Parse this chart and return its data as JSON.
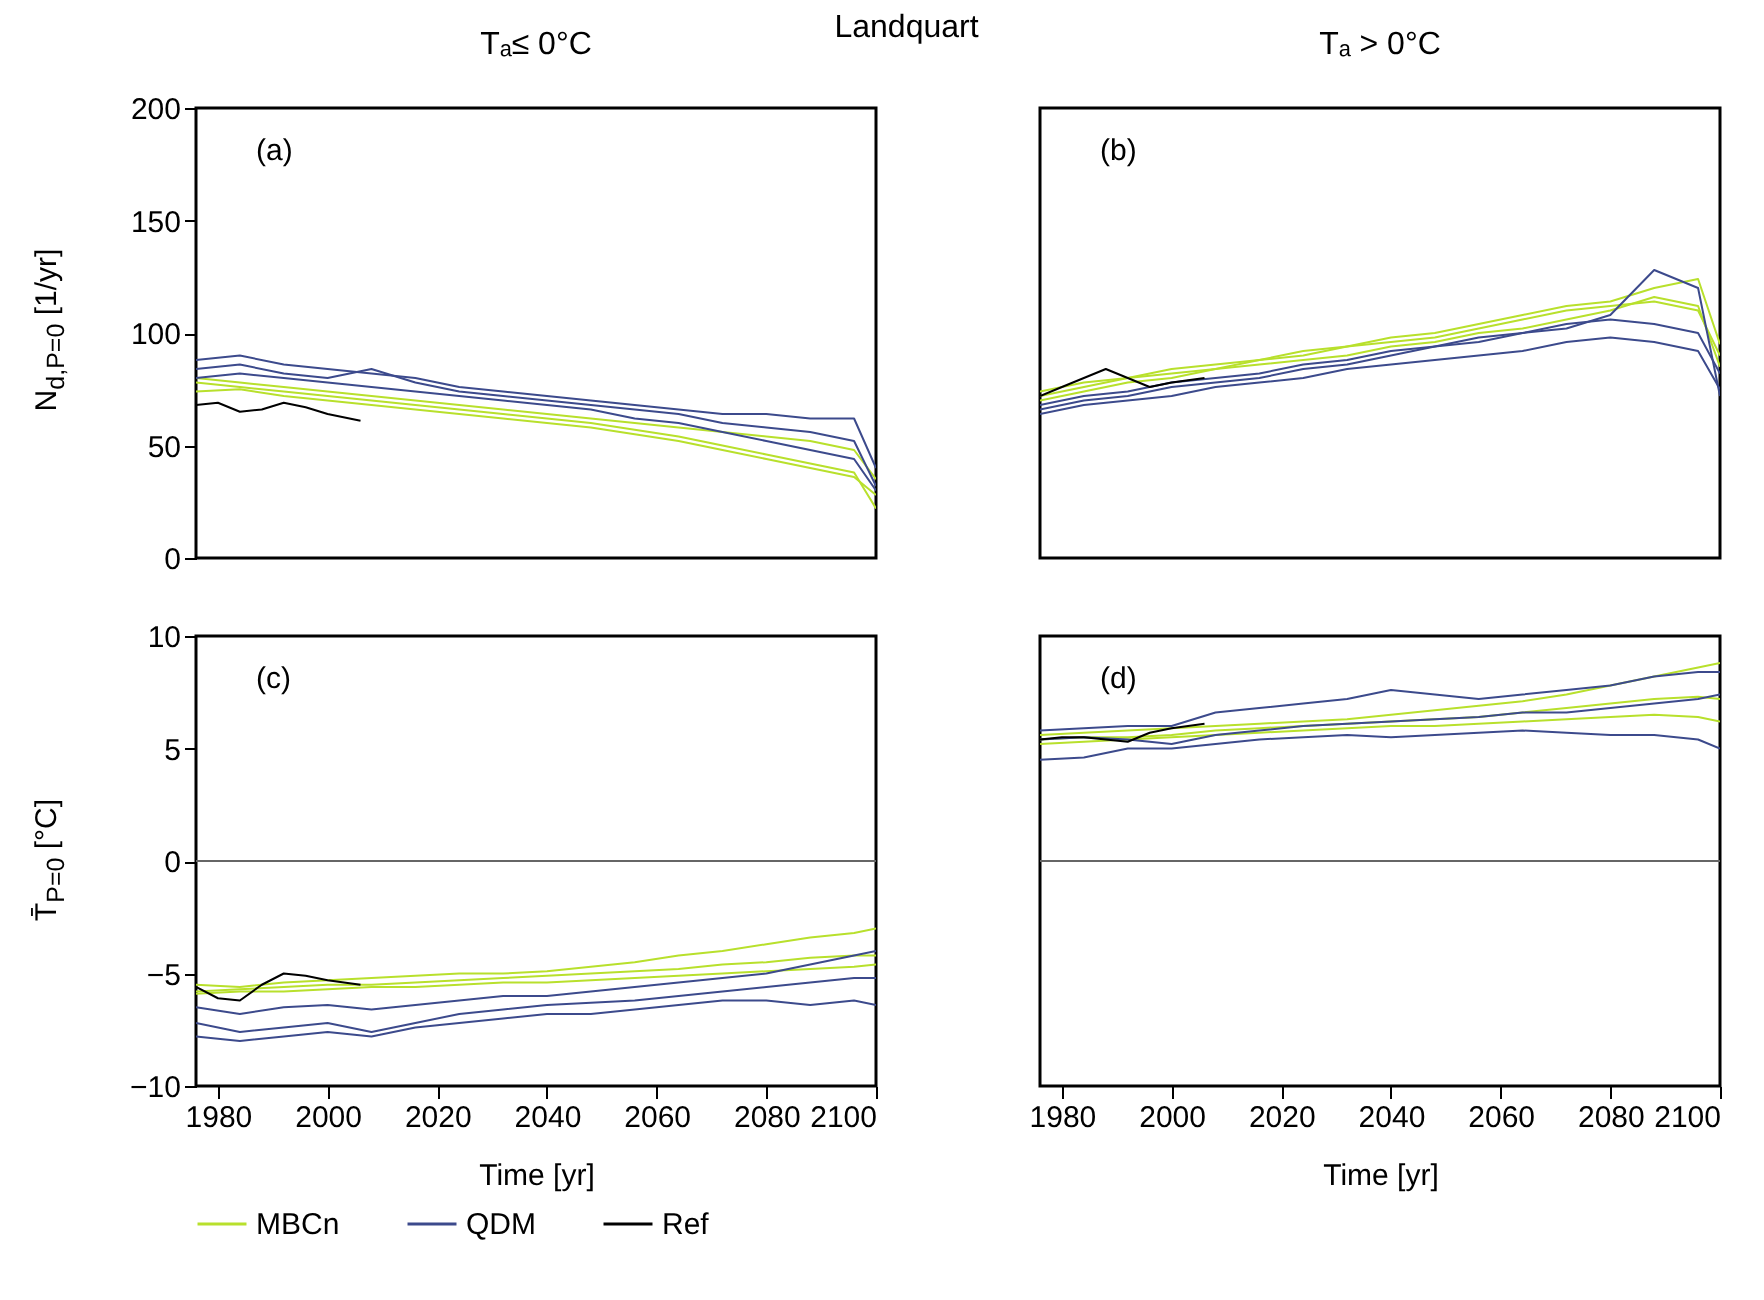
{
  "chart_data": [
    {
      "type": "line",
      "title": "Landquart",
      "subtitle": "Tₐ≤  0°C",
      "ylabel": "N$_{d,P=0}$ [1/yr]",
      "annotations": [
        "(a)"
      ],
      "legend": "bottom",
      "tick_labels": "y",
      "xlim": [
        1976,
        2100
      ],
      "xticks": [
        1980,
        2000,
        2020,
        2040,
        2060,
        2080,
        2100
      ],
      "ylim": [
        0,
        200
      ],
      "yticks": [
        0,
        50,
        100,
        150,
        200
      ],
      "x": [
        1976,
        1984,
        1992,
        2000,
        2008,
        2016,
        2024,
        2032,
        2040,
        2048,
        2056,
        2064,
        2072,
        2080,
        2088,
        2096,
        2100
      ],
      "series": [
        {
          "name": "MBCn",
          "color": "#b8e02c",
          "values": [
            78,
            76,
            74,
            72,
            70,
            68,
            66,
            64,
            62,
            60,
            57,
            54,
            50,
            46,
            42,
            38,
            22
          ]
        },
        {
          "color": "#b8e02c",
          "values": [
            74,
            75,
            72,
            70,
            68,
            66,
            64,
            62,
            60,
            58,
            55,
            52,
            48,
            44,
            40,
            36,
            28
          ]
        },
        {
          "color": "#b8e02c",
          "values": [
            80,
            78,
            76,
            74,
            72,
            70,
            68,
            66,
            64,
            62,
            60,
            58,
            56,
            54,
            52,
            48,
            35
          ]
        },
        {
          "name": "QDM",
          "color": "#3c4a8c",
          "values": [
            88,
            90,
            86,
            84,
            82,
            80,
            76,
            74,
            72,
            70,
            68,
            66,
            64,
            64,
            62,
            62,
            40
          ]
        },
        {
          "color": "#3c4a8c",
          "values": [
            80,
            82,
            80,
            78,
            76,
            74,
            72,
            70,
            68,
            66,
            62,
            60,
            56,
            52,
            48,
            44,
            30
          ]
        },
        {
          "color": "#3c4a8c",
          "values": [
            84,
            86,
            82,
            80,
            84,
            78,
            74,
            72,
            70,
            68,
            66,
            64,
            60,
            58,
            56,
            52,
            32
          ]
        },
        {
          "name": "Ref",
          "color": "#000000",
          "x": [
            1976,
            1980,
            1984,
            1988,
            1992,
            1996,
            2000,
            2006
          ],
          "values": [
            68,
            69,
            65,
            66,
            69,
            67,
            64,
            61
          ]
        }
      ]
    },
    {
      "type": "line",
      "subtitle": "Tₐ > 0°C",
      "annotations": [
        "(b)"
      ],
      "tick_labels": false,
      "xlim": [
        1976,
        2100
      ],
      "xticks": [
        1980,
        2000,
        2020,
        2040,
        2060,
        2080,
        2100
      ],
      "ylim": [
        0,
        200
      ],
      "yticks": [
        0,
        50,
        100,
        150,
        200
      ],
      "x": [
        1976,
        1984,
        1992,
        2000,
        2008,
        2016,
        2024,
        2032,
        2040,
        2048,
        2056,
        2064,
        2072,
        2080,
        2088,
        2096,
        2100
      ],
      "series": [
        {
          "name": "MBCn",
          "color": "#b8e02c",
          "values": [
            72,
            76,
            80,
            84,
            86,
            88,
            90,
            94,
            98,
            100,
            104,
            108,
            112,
            114,
            120,
            124,
            95
          ]
        },
        {
          "color": "#b8e02c",
          "values": [
            70,
            74,
            78,
            80,
            84,
            86,
            88,
            90,
            94,
            96,
            100,
            102,
            106,
            110,
            116,
            112,
            85
          ]
        },
        {
          "color": "#b8e02c",
          "values": [
            74,
            78,
            80,
            82,
            84,
            88,
            92,
            94,
            96,
            98,
            102,
            106,
            110,
            112,
            114,
            110,
            90
          ]
        },
        {
          "name": "QDM",
          "color": "#3c4a8c",
          "values": [
            66,
            70,
            72,
            76,
            78,
            80,
            84,
            86,
            90,
            94,
            98,
            100,
            102,
            108,
            128,
            120,
            72
          ]
        },
        {
          "color": "#3c4a8c",
          "values": [
            64,
            68,
            70,
            72,
            76,
            78,
            80,
            84,
            86,
            88,
            90,
            92,
            96,
            98,
            96,
            92,
            75
          ]
        },
        {
          "color": "#3c4a8c",
          "values": [
            68,
            72,
            74,
            78,
            80,
            82,
            86,
            88,
            92,
            94,
            96,
            100,
            104,
            106,
            104,
            100,
            82
          ]
        },
        {
          "name": "Ref",
          "color": "#000000",
          "x": [
            1976,
            1980,
            1984,
            1988,
            1992,
            1996,
            2000,
            2006
          ],
          "values": [
            72,
            76,
            80,
            84,
            80,
            76,
            78,
            80
          ]
        }
      ]
    },
    {
      "type": "line",
      "xlabel": "Time [yr]",
      "ylabel": "T̄$_{P=0}$ [°C]",
      "annotations": [
        "(c)"
      ],
      "xlim": [
        1976,
        2100
      ],
      "xticks": [
        1980,
        2000,
        2020,
        2040,
        2060,
        2080,
        2100
      ],
      "ylim": [
        -10,
        10
      ],
      "yticks": [
        -10,
        -5,
        0,
        5,
        10
      ],
      "ref_lines": [
        {
          "axis": "y",
          "value": 0,
          "color": "#666666"
        }
      ],
      "x": [
        1976,
        1984,
        1992,
        2000,
        2008,
        2016,
        2024,
        2032,
        2040,
        2048,
        2056,
        2064,
        2072,
        2080,
        2088,
        2096,
        2100
      ],
      "series": [
        {
          "name": "MBCn",
          "color": "#b8e02c",
          "values": [
            -5.5,
            -5.6,
            -5.4,
            -5.3,
            -5.2,
            -5.1,
            -5,
            -5,
            -4.9,
            -4.7,
            -4.5,
            -4.2,
            -4,
            -3.7,
            -3.4,
            -3.2,
            -3
          ]
        },
        {
          "color": "#b8e02c",
          "values": [
            -5.8,
            -5.7,
            -5.6,
            -5.5,
            -5.5,
            -5.4,
            -5.3,
            -5.2,
            -5.1,
            -5,
            -4.9,
            -4.8,
            -4.6,
            -4.5,
            -4.3,
            -4.2,
            -4.2
          ]
        },
        {
          "color": "#b8e02c",
          "values": [
            -5.9,
            -5.8,
            -5.8,
            -5.7,
            -5.6,
            -5.6,
            -5.5,
            -5.4,
            -5.4,
            -5.3,
            -5.2,
            -5.1,
            -5,
            -4.9,
            -4.8,
            -4.7,
            -4.6
          ]
        },
        {
          "name": "QDM",
          "color": "#3c4a8c",
          "values": [
            -6.5,
            -6.8,
            -6.5,
            -6.4,
            -6.6,
            -6.4,
            -6.2,
            -6,
            -6,
            -5.8,
            -5.6,
            -5.4,
            -5.2,
            -5,
            -4.6,
            -4.2,
            -4
          ]
        },
        {
          "color": "#3c4a8c",
          "values": [
            -7.2,
            -7.6,
            -7.4,
            -7.2,
            -7.6,
            -7.2,
            -6.8,
            -6.6,
            -6.4,
            -6.3,
            -6.2,
            -6,
            -5.8,
            -5.6,
            -5.4,
            -5.2,
            -5.2
          ]
        },
        {
          "color": "#3c4a8c",
          "values": [
            -7.8,
            -8,
            -7.8,
            -7.6,
            -7.8,
            -7.4,
            -7.2,
            -7,
            -6.8,
            -6.8,
            -6.6,
            -6.4,
            -6.2,
            -6.2,
            -6.4,
            -6.2,
            -6.4
          ]
        },
        {
          "name": "Ref",
          "color": "#000000",
          "x": [
            1976,
            1980,
            1984,
            1988,
            1992,
            1996,
            2000,
            2006
          ],
          "values": [
            -5.6,
            -6.1,
            -6.2,
            -5.5,
            -5.0,
            -5.1,
            -5.3,
            -5.5
          ]
        }
      ]
    },
    {
      "type": "line",
      "xlabel": "Time [yr]",
      "annotations": [
        "(d)"
      ],
      "tick_labels": "x",
      "xlim": [
        1976,
        2100
      ],
      "xticks": [
        1980,
        2000,
        2020,
        2040,
        2060,
        2080,
        2100
      ],
      "ylim": [
        -10,
        10
      ],
      "yticks": [
        -10,
        -5,
        0,
        5,
        10
      ],
      "ref_lines": [
        {
          "axis": "y",
          "value": 0,
          "color": "#666666"
        }
      ],
      "x": [
        1976,
        1984,
        1992,
        2000,
        2008,
        2016,
        2024,
        2032,
        2040,
        2048,
        2056,
        2064,
        2072,
        2080,
        2088,
        2096,
        2100
      ],
      "series": [
        {
          "name": "MBCn",
          "color": "#b8e02c",
          "values": [
            5.6,
            5.7,
            5.8,
            5.9,
            6,
            6.1,
            6.2,
            6.3,
            6.5,
            6.7,
            6.9,
            7.1,
            7.4,
            7.8,
            8.2,
            8.6,
            8.8
          ]
        },
        {
          "color": "#b8e02c",
          "values": [
            5.4,
            5.5,
            5.5,
            5.6,
            5.8,
            5.9,
            6,
            6.1,
            6.2,
            6.3,
            6.4,
            6.6,
            6.8,
            7,
            7.2,
            7.3,
            7.2
          ]
        },
        {
          "color": "#b8e02c",
          "values": [
            5.2,
            5.3,
            5.4,
            5.5,
            5.6,
            5.7,
            5.8,
            5.9,
            6,
            6,
            6.1,
            6.2,
            6.3,
            6.4,
            6.5,
            6.4,
            6.2
          ]
        },
        {
          "name": "QDM",
          "color": "#3c4a8c",
          "values": [
            5.8,
            5.9,
            6,
            6,
            6.6,
            6.8,
            7,
            7.2,
            7.6,
            7.4,
            7.2,
            7.4,
            7.6,
            7.8,
            8.2,
            8.4,
            8.4
          ]
        },
        {
          "color": "#3c4a8c",
          "values": [
            5.4,
            5.5,
            5.4,
            5.2,
            5.6,
            5.8,
            6,
            6.1,
            6.2,
            6.3,
            6.4,
            6.6,
            6.6,
            6.8,
            7,
            7.2,
            7.4
          ]
        },
        {
          "color": "#3c4a8c",
          "values": [
            4.5,
            4.6,
            5,
            5,
            5.2,
            5.4,
            5.5,
            5.6,
            5.5,
            5.6,
            5.7,
            5.8,
            5.7,
            5.6,
            5.6,
            5.4,
            5
          ]
        },
        {
          "name": "Ref",
          "color": "#000000",
          "x": [
            1976,
            1980,
            1984,
            1988,
            1992,
            1996,
            2000,
            2006
          ],
          "values": [
            5.4,
            5.5,
            5.5,
            5.4,
            5.3,
            5.7,
            5.9,
            6.1
          ]
        }
      ]
    }
  ]
}
